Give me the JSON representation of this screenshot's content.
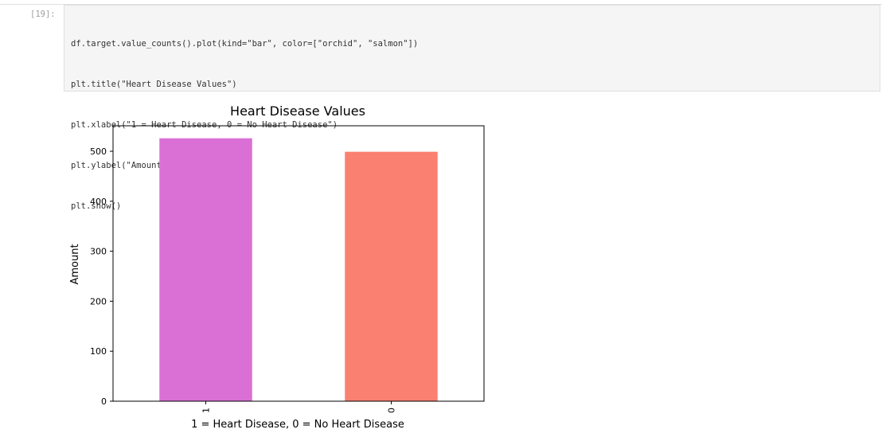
{
  "cell": {
    "prompt": "[19]:",
    "code_lines": [
      "df.target.value_counts().plot(kind=\"bar\", color=[\"orchid\", \"salmon\"])",
      "plt.title(\"Heart Disease Values\")",
      "plt.xlabel(\"1 = Heart Disease, 0 = No Heart Disease\")",
      "plt.ylabel(\"Amount\")",
      "plt.show()"
    ]
  },
  "chart_data": {
    "type": "bar",
    "title": "Heart Disease Values",
    "xlabel": "1 = Heart Disease, 0 = No Heart Disease",
    "ylabel": "Amount",
    "categories": [
      "1",
      "0"
    ],
    "values": [
      526,
      499
    ],
    "colors": [
      "#da70d6",
      "#fa8072"
    ],
    "ylim": [
      0,
      551
    ],
    "yticks": [
      0,
      100,
      200,
      300,
      400,
      500
    ],
    "grid": false
  }
}
